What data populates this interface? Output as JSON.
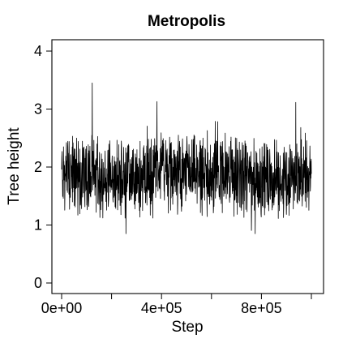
{
  "chart_data": {
    "type": "line",
    "title": "Metropolis",
    "xlabel": "Step",
    "ylabel": "Tree height",
    "xlim": [
      0,
      1000000
    ],
    "ylim": [
      0,
      4
    ],
    "x_ticks": [
      0,
      200000,
      400000,
      600000,
      800000,
      1000000
    ],
    "x_tick_labels": [
      "0e+00",
      "",
      "4e+05",
      "",
      "8e+05",
      ""
    ],
    "y_ticks": [
      0,
      1,
      2,
      3,
      4
    ],
    "y_tick_labels": [
      "0",
      "1",
      "2",
      "3",
      "4"
    ],
    "grid": false,
    "series": [
      {
        "color": "#000000",
        "x": [
          0,
          50000,
          100000,
          150000,
          200000,
          250000,
          300000,
          350000,
          400000,
          450000,
          500000,
          550000,
          600000,
          650000,
          700000,
          750000,
          800000,
          850000,
          900000,
          950000,
          1000000
        ],
        "y": [
          1.9,
          1.85,
          1.9,
          1.8,
          1.75,
          1.8,
          1.75,
          1.85,
          2.0,
          1.85,
          1.9,
          1.85,
          1.8,
          1.85,
          1.8,
          1.8,
          1.8,
          1.85,
          1.75,
          1.8,
          1.85
        ]
      }
    ]
  }
}
